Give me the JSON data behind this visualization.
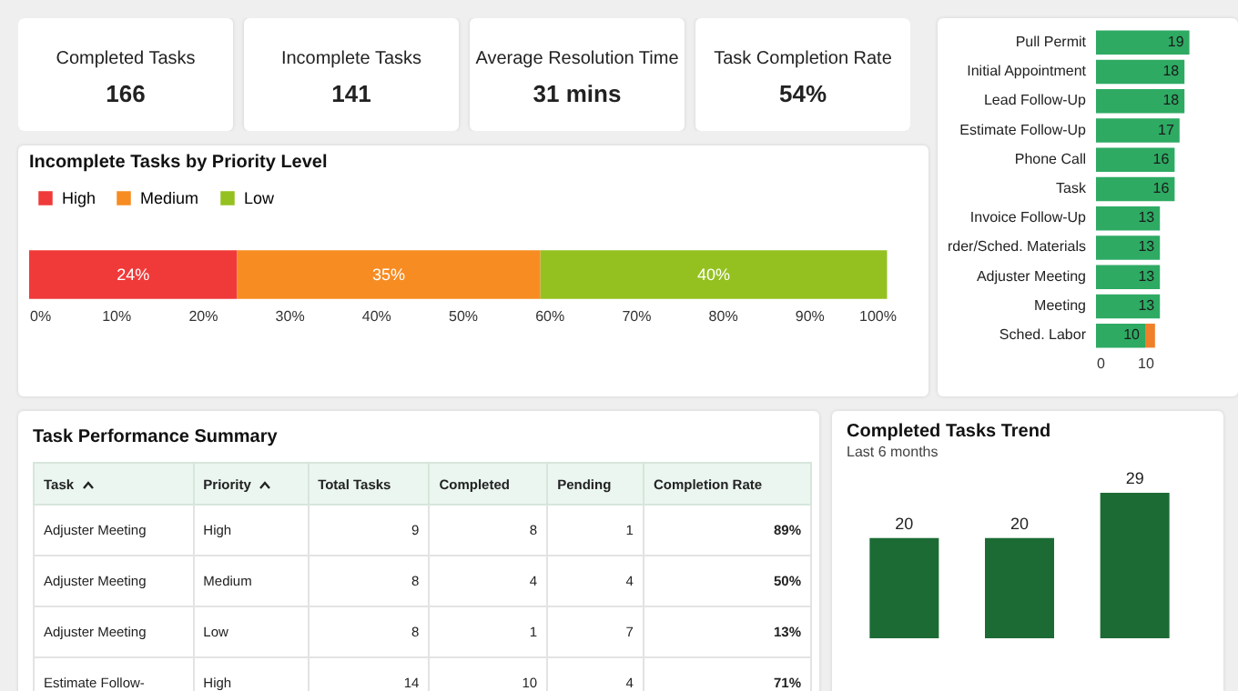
{
  "chart_data": [
    {
      "type": "other",
      "categories": [
        "Completed Tasks",
        "Incomplete Tasks",
        "Average Resolution Time",
        "Task Completion Rate"
      ],
      "value_labels": [
        "166",
        "141",
        "31 mins",
        "54%"
      ]
    },
    {
      "type": "bar",
      "title": "Incomplete Tasks by Priority Level",
      "orientation": "horizontal",
      "stacked": true,
      "categories": [
        null
      ],
      "series": [
        {
          "name": "High",
          "color": "#f03a3a",
          "values": [
            24
          ],
          "value_labels": [
            "24%"
          ]
        },
        {
          "name": "Medium",
          "color": "#f78c22",
          "values": [
            35
          ],
          "value_labels": [
            "35%"
          ]
        },
        {
          "name": "Low",
          "color": "#94c11f",
          "values": [
            40
          ],
          "value_labels": [
            "40%"
          ]
        }
      ],
      "xlim": [
        0,
        100
      ],
      "xticks": [
        {
          "value": 0,
          "label": "0%"
        },
        {
          "value": 10,
          "label": "10%"
        },
        {
          "value": 20,
          "label": "20%"
        },
        {
          "value": 30,
          "label": "30%"
        },
        {
          "value": 40,
          "label": "40%"
        },
        {
          "value": 50,
          "label": "50%"
        },
        {
          "value": 60,
          "label": "60%"
        },
        {
          "value": 70,
          "label": "70%"
        },
        {
          "value": 80,
          "label": "80%"
        },
        {
          "value": 90,
          "label": "90%"
        },
        {
          "value": 100,
          "label": "100%"
        }
      ],
      "legend": "top"
    },
    {
      "type": "bar",
      "orientation": "horizontal",
      "stacked": true,
      "categories": [
        "Pull Permit",
        "Initial Appointment",
        "Lead Follow-Up",
        "Estimate Follow-Up",
        "Phone Call",
        "Task",
        "Invoice Follow-Up",
        "rder/Sched. Materials",
        "Adjuster Meeting",
        "Meeting",
        "Sched. Labor"
      ],
      "series": [
        {
          "color": "#2eaa63",
          "values": [
            19,
            18,
            18,
            17,
            16,
            16,
            13,
            13,
            13,
            13,
            10
          ],
          "value_labels": [
            "19",
            "18",
            "18",
            "17",
            "16",
            "16",
            "13",
            "13",
            "13",
            "13",
            "10"
          ]
        },
        {
          "color": "#f07f2a",
          "values": [
            null,
            null,
            null,
            null,
            null,
            null,
            null,
            null,
            null,
            null,
            2
          ]
        }
      ],
      "xlim": [
        0,
        20
      ],
      "xticks": [
        0,
        10
      ]
    },
    {
      "type": "other",
      "title": "Task Performance Summary",
      "categories": [
        "Task",
        "Priority",
        "Total Tasks",
        "Completed",
        "Pending",
        "Completion Rate"
      ],
      "cell_labels": [
        [
          "Adjuster Meeting",
          "High",
          "9",
          "8",
          "1",
          "89%"
        ],
        [
          "Adjuster Meeting",
          "Medium",
          "8",
          "4",
          "4",
          "50%"
        ],
        [
          "Adjuster Meeting",
          "Low",
          "8",
          "1",
          "7",
          "13%"
        ],
        [
          "Estimate Follow-",
          "High",
          "14",
          "10",
          "4",
          "71%"
        ]
      ]
    },
    {
      "type": "bar",
      "title": "Completed Tasks Trend",
      "subtitle": "Last 6 months",
      "categories": [
        null,
        null,
        null
      ],
      "values": [
        20,
        20,
        29
      ],
      "color": "#1c6b35",
      "data_labels": true
    }
  ]
}
